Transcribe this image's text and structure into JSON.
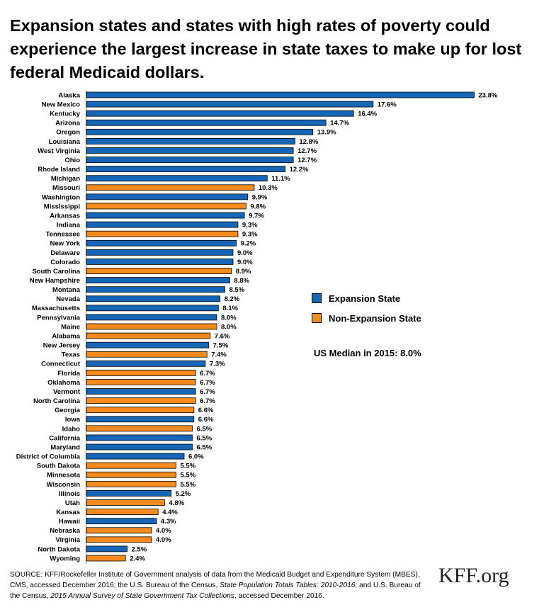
{
  "title": "Expansion states and states with high rates of poverty could experience the largest increase in state taxes to make up for lost federal Medicaid dollars.",
  "legend": [
    {
      "label": "Expansion State",
      "color": "#1566b7"
    },
    {
      "label": "Non-Expansion State",
      "color": "#f58b1f"
    }
  ],
  "median_note": "US Median in 2015: 8.0%",
  "source": {
    "part1": "SOURCE: KFF/Rockefeller Institute of Government analysis of data from the Medicaid Budget and Expenditure System (MBES), CMS, accessed December 2016; the U.S. Bureau of the Census, ",
    "italic1": "State Population Totals Tables: 2010-2016",
    "part2": "; and U.S. Bureau of the Census, ",
    "italic2": "2015 Annual Survey of State Government Tax Collections",
    "part3": ", accessed December 2016."
  },
  "logo": "KFF.org",
  "chart_data": {
    "type": "bar",
    "orientation": "horizontal",
    "value_suffix": "%",
    "xlim": [
      0,
      24
    ],
    "grid": false,
    "legend_position": "right",
    "series_colors": {
      "expansion": "#1566b7",
      "non_expansion": "#f58b1f"
    },
    "categories": [
      "Alaska",
      "New Mexico",
      "Kentucky",
      "Arizona",
      "Oregon",
      "Louisiana",
      "West Virginia",
      "Ohio",
      "Rhode Island",
      "Michigan",
      "Missouri",
      "Washington",
      "Mississippi",
      "Arkansas",
      "Indiana",
      "Tennessee",
      "New York",
      "Delaware",
      "Colorado",
      "South Carolina",
      "New Hampshire",
      "Montana",
      "Nevada",
      "Massachusetts",
      "Pennsylvania",
      "Maine",
      "Alabama",
      "New Jersey",
      "Texas",
      "Connecticut",
      "Florida",
      "Oklahoma",
      "Vermont",
      "North Carolina",
      "Georgia",
      "Iowa",
      "Idaho",
      "California",
      "Maryland",
      "District of Columbia",
      "South Dakota",
      "Minnesota",
      "Wisconsin",
      "Illinois",
      "Utah",
      "Kansas",
      "Hawaii",
      "Nebraska",
      "Virginia",
      "North Dakota",
      "Wyoming"
    ],
    "values": [
      23.8,
      17.6,
      16.4,
      14.7,
      13.9,
      12.8,
      12.7,
      12.7,
      12.2,
      11.1,
      10.3,
      9.9,
      9.8,
      9.7,
      9.3,
      9.3,
      9.2,
      9.0,
      9.0,
      8.9,
      8.8,
      8.5,
      8.2,
      8.1,
      8.0,
      8.0,
      7.6,
      7.5,
      7.4,
      7.3,
      6.7,
      6.7,
      6.7,
      6.7,
      6.6,
      6.6,
      6.5,
      6.5,
      6.5,
      6.0,
      5.5,
      5.5,
      5.5,
      5.2,
      4.8,
      4.4,
      4.3,
      4.0,
      4.0,
      2.5,
      2.4
    ],
    "labels": [
      "23.8%",
      "17.6%",
      "16.4%",
      "14.7%",
      "13.9%",
      "12.8%",
      "12.7%",
      "12.7%",
      "12.2%",
      "11.1%",
      "10.3%",
      "9.9%",
      "9.8%",
      "9.7%",
      "9.3%",
      "9.3%",
      "9.2%",
      "9.0%",
      "9.0%",
      "8.9%",
      "8.8%",
      "8.5%",
      "8.2%",
      "8.1%",
      "8.0%",
      "8.0%",
      "7.6%",
      "7.5%",
      "7.4%",
      "7.3%",
      "6.7%",
      "6.7%",
      "6.7%",
      "6.7%",
      "6.6%",
      "6.6%",
      "6.5%",
      "6.5%",
      "6.5%",
      "6.0%",
      "5.5%",
      "5.5%",
      "5.5%",
      "5.2%",
      "4.8%",
      "4.4%",
      "4.3%",
      "4.0%",
      "4.0%",
      "2.5%",
      "2.4%"
    ],
    "status": [
      "expansion",
      "expansion",
      "expansion",
      "expansion",
      "expansion",
      "expansion",
      "expansion",
      "expansion",
      "expansion",
      "expansion",
      "non_expansion",
      "expansion",
      "non_expansion",
      "expansion",
      "expansion",
      "non_expansion",
      "expansion",
      "expansion",
      "expansion",
      "non_expansion",
      "expansion",
      "expansion",
      "expansion",
      "expansion",
      "expansion",
      "non_expansion",
      "non_expansion",
      "expansion",
      "non_expansion",
      "expansion",
      "non_expansion",
      "non_expansion",
      "expansion",
      "non_expansion",
      "non_expansion",
      "expansion",
      "non_expansion",
      "expansion",
      "expansion",
      "expansion",
      "non_expansion",
      "non_expansion",
      "non_expansion",
      "expansion",
      "non_expansion",
      "non_expansion",
      "expansion",
      "non_expansion",
      "non_expansion",
      "expansion",
      "non_expansion"
    ]
  }
}
